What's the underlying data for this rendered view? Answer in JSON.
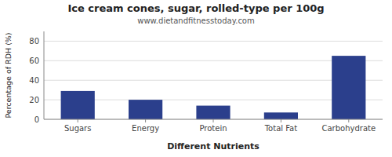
{
  "chart_data": {
    "type": "bar",
    "title": "Ice cream cones, sugar, rolled-type per 100g",
    "subtitle": "www.dietandfitnesstoday.com",
    "xlabel": "Different Nutrients",
    "ylabel": "Percentage of RDH (%)",
    "categories": [
      "Sugars",
      "Energy",
      "Protein",
      "Total Fat",
      "Carbohydrate"
    ],
    "values": [
      29,
      20,
      14,
      7,
      65
    ],
    "color": "#2b3f8c",
    "ylim": [
      0,
      90
    ],
    "yticks": [
      0,
      20,
      40,
      60,
      80
    ],
    "grid": true
  }
}
